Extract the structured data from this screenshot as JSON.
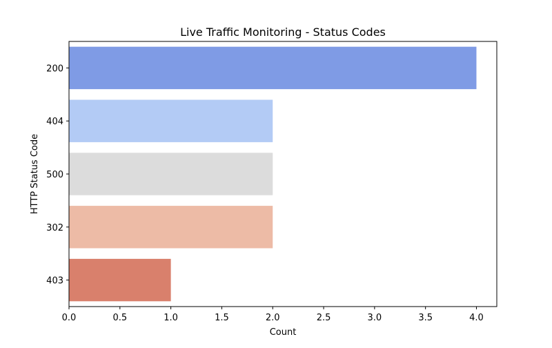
{
  "chart_data": {
    "type": "bar",
    "orientation": "horizontal",
    "title": "Live Traffic Monitoring - Status Codes",
    "xlabel": "Count",
    "ylabel": "HTTP Status Code",
    "categories": [
      "200",
      "404",
      "500",
      "302",
      "403"
    ],
    "values": [
      4,
      2,
      2,
      2,
      1
    ],
    "colors": [
      "#7f9be5",
      "#b3cbf5",
      "#dcdcdc",
      "#edbba6",
      "#d9806c"
    ],
    "xlim": [
      0,
      4.2
    ],
    "xticks": [
      0.0,
      0.5,
      1.0,
      1.5,
      2.0,
      2.5,
      3.0,
      3.5,
      4.0
    ],
    "xtick_labels": [
      "0.0",
      "0.5",
      "1.0",
      "1.5",
      "2.0",
      "2.5",
      "3.0",
      "3.5",
      "4.0"
    ],
    "grid": false,
    "legend": "none"
  }
}
